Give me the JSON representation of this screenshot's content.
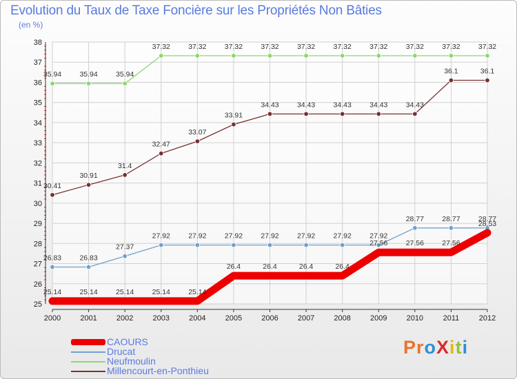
{
  "title": "Evolution du Taux de Taxe Foncière sur les Propriétés Non Bâties",
  "unit_label": "(en %)",
  "logo": {
    "text": "ProXiti",
    "colors": [
      "#e8742b",
      "#e8742b",
      "#2f8fd5",
      "#d92b2b",
      "#f0b400",
      "#8cc63f",
      "#2f8fd5"
    ]
  },
  "chart_data": {
    "type": "line",
    "x": [
      "2000",
      "2001",
      "2002",
      "2003",
      "2004",
      "2005",
      "2006",
      "2007",
      "2008",
      "2009",
      "2010",
      "2011",
      "2012"
    ],
    "ylim": [
      25,
      38
    ],
    "yticks": [
      25,
      26,
      27,
      28,
      29,
      30,
      31,
      32,
      33,
      34,
      35,
      36,
      37,
      38
    ],
    "grid": true,
    "series": [
      {
        "name": "CAOURS",
        "color": "#ee0000",
        "values": [
          25.14,
          25.14,
          25.14,
          25.14,
          25.14,
          26.4,
          26.4,
          26.4,
          26.4,
          27.56,
          27.56,
          27.56,
          28.53
        ]
      },
      {
        "name": "Drucat",
        "color": "#6fa0cf",
        "values": [
          26.83,
          26.83,
          27.37,
          27.92,
          27.92,
          27.92,
          27.92,
          27.92,
          27.92,
          27.92,
          28.77,
          28.77,
          28.77
        ]
      },
      {
        "name": "Neufmoulin",
        "color": "#8cd86a",
        "values": [
          35.94,
          35.94,
          35.94,
          37.32,
          37.32,
          37.32,
          37.32,
          37.32,
          37.32,
          37.32,
          37.32,
          37.32,
          37.32
        ]
      },
      {
        "name": "Millencourt-en-Ponthieu",
        "color": "#7a3030",
        "values": [
          30.41,
          30.91,
          31.4,
          32.47,
          33.07,
          33.91,
          34.43,
          34.43,
          34.43,
          34.43,
          34.43,
          36.1,
          36.1
        ]
      }
    ],
    "data_labels": [
      [
        "25.14",
        "25.14",
        "25.14",
        "25.14",
        "25.14",
        "26.4",
        "26.4",
        "26.4",
        "26.4",
        "27.56",
        "27.56",
        "27.56",
        "28.53"
      ],
      [
        "26.83",
        "26.83",
        "27.37",
        "27.92",
        "27.92",
        "27.92",
        "27.92",
        "27.92",
        "27.92",
        "27.92",
        "28.77",
        "28.77",
        "28.77"
      ],
      [
        "35.94",
        "35.94",
        "35.94",
        "37.32",
        "37.32",
        "37.32",
        "37.32",
        "37.32",
        "37.32",
        "37.32",
        "37.32",
        "37.32",
        "37.32"
      ],
      [
        "30.41",
        "30.91",
        "31.4",
        "32.47",
        "33.07",
        "33.91",
        "34.43",
        "34.43",
        "34.43",
        "34.43",
        "34.43",
        "36.1",
        "36.1"
      ]
    ],
    "legend_position": "bottom-left"
  }
}
